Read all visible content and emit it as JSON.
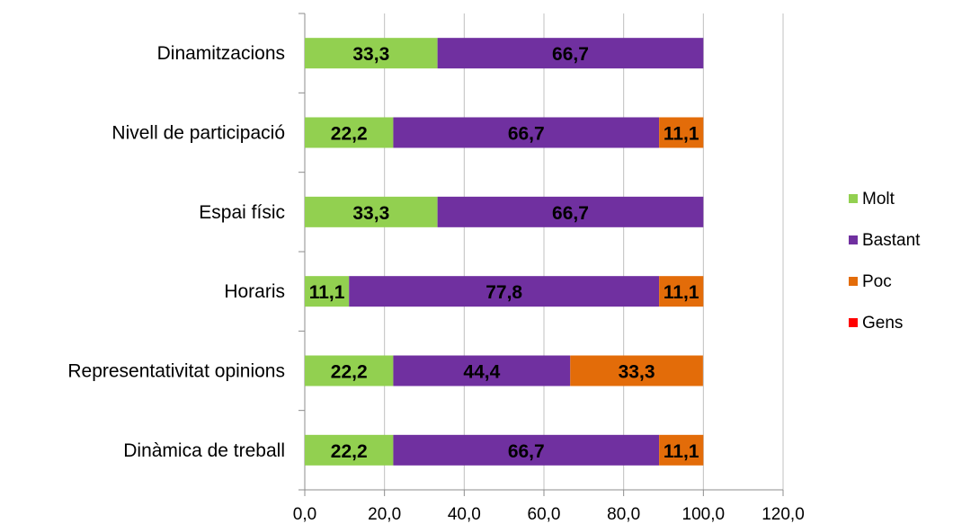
{
  "chart_data": {
    "type": "bar",
    "orientation": "horizontal",
    "stacked": true,
    "categories": [
      "Dinamitzacions",
      "Nivell de participació",
      "Espai físic",
      "Horaris",
      "Representativitat opinions",
      "Dinàmica de treball"
    ],
    "series": [
      {
        "name": "Molt",
        "color": "#92d050",
        "values": [
          33.3,
          22.2,
          33.3,
          11.1,
          22.2,
          22.2
        ],
        "labels": [
          "33,3",
          "22,2",
          "33,3",
          "11,1",
          "22,2",
          "22,2"
        ]
      },
      {
        "name": "Bastant",
        "color": "#7030a0",
        "values": [
          66.7,
          66.7,
          66.7,
          77.8,
          44.4,
          66.7
        ],
        "labels": [
          "66,7",
          "66,7",
          "66,7",
          "77,8",
          "44,4",
          "66,7"
        ]
      },
      {
        "name": "Poc",
        "color": "#e36c09",
        "values": [
          0,
          11.1,
          0,
          11.1,
          33.3,
          11.1
        ],
        "labels": [
          "",
          "11,1",
          "",
          "11,1",
          "33,3",
          "11,1"
        ]
      },
      {
        "name": "Gens",
        "color": "#ff0000",
        "values": [
          0,
          0,
          0,
          0,
          0,
          0
        ],
        "labels": [
          "",
          "",
          "",
          "",
          "",
          ""
        ]
      }
    ],
    "xlim": [
      0,
      120
    ],
    "xticks": [
      0,
      20,
      40,
      60,
      80,
      100,
      120
    ],
    "xtick_labels": [
      "0,0",
      "20,0",
      "40,0",
      "60,0",
      "80,0",
      "100,0",
      "120,0"
    ],
    "grid": "vertical",
    "legend": "right",
    "title": "",
    "xlabel": "",
    "ylabel": ""
  }
}
